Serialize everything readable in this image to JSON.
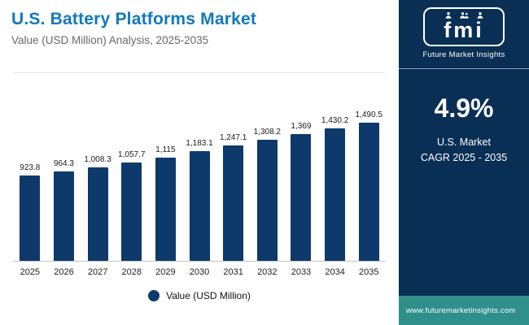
{
  "header": {
    "title": "U.S. Battery Platforms Market",
    "subtitle": "Value (USD Million) Analysis, 2025-2035"
  },
  "chart_data": {
    "type": "bar",
    "title": "U.S. Battery Platforms Market",
    "subtitle": "Value (USD Million) Analysis, 2025-2035",
    "categories": [
      "2025",
      "2026",
      "2027",
      "2028",
      "2029",
      "2030",
      "2031",
      "2032",
      "2033",
      "2034",
      "2035"
    ],
    "values": [
      923.8,
      964.3,
      1008.3,
      1057.7,
      1115,
      1183.1,
      1247.1,
      1308.2,
      1369,
      1430.2,
      1490.5
    ],
    "value_labels": [
      "923.8",
      "964.3",
      "1,008.3",
      "1,057.7",
      "1,115",
      "1,183.1",
      "1,247.1",
      "1,308.2",
      "1,369",
      "1,430.2",
      "1,490.5"
    ],
    "xlabel": "",
    "ylabel": "Value (USD Million)",
    "ylim": [
      0,
      1600
    ],
    "grid": false,
    "legend_position": "bottom",
    "legend": [
      "Value (USD Million)"
    ],
    "bar_color": "#0d3a6b"
  },
  "legend": {
    "label": "Value (USD Million)"
  },
  "sidebar": {
    "logo_text": "fmi",
    "brand": "Future Market Insights",
    "stat_value": "4.9%",
    "stat_caption_line1": "U.S. Market",
    "stat_caption_line2": "CAGR 2025 - 2035",
    "footer_url": "www.futuremarketinsights.com"
  },
  "colors": {
    "title_blue": "#1278be",
    "bar_navy": "#0d3a6b",
    "sidebar_navy": "#0a2f55",
    "footer_teal": "#2e8f8b"
  }
}
